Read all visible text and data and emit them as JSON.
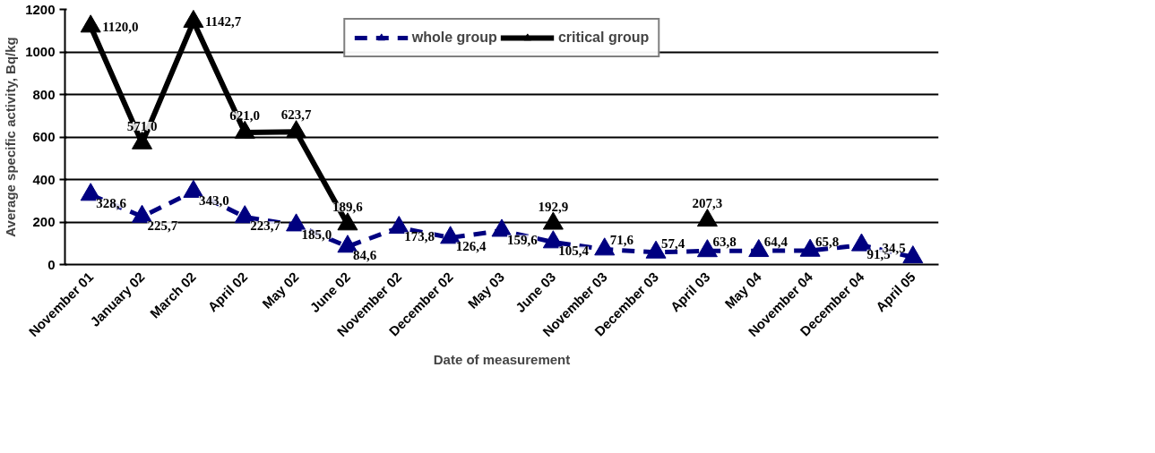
{
  "chart_data": {
    "type": "line",
    "xlabel": "Date of measurement",
    "ylabel": "Average specific activity, Bq/kg",
    "categories": [
      "November 01",
      "January 02",
      "March 02",
      "April 02",
      "May 02",
      "June 02",
      "November 02",
      "December 02",
      "May 03",
      "June 03",
      "November 03",
      "December 03",
      "April 03",
      "May 04",
      "November 04",
      "December 04",
      "April 05"
    ],
    "series": [
      {
        "name": "whole group",
        "color": "#000080",
        "line_style": "dashed",
        "values": [
          328.6,
          225.7,
          343.0,
          223.7,
          185.0,
          84.6,
          173.8,
          126.4,
          159.6,
          105.4,
          71.6,
          57.4,
          63.8,
          64.4,
          65.8,
          91.5,
          34.5
        ],
        "value_labels": [
          "328,6",
          "225,7",
          "343,0",
          "223,7",
          "185,0",
          "84,6",
          "173,8",
          "126,4",
          "159,6",
          "105,4",
          "71,6",
          "57,4",
          "63,8",
          "64,4",
          "65,8",
          "91,5",
          "34,5"
        ]
      },
      {
        "name": "critical group",
        "color": "#000000",
        "line_style": "solid",
        "values": [
          1120.0,
          571.0,
          1142.7,
          621.0,
          623.7,
          189.6,
          null,
          null,
          null,
          192.9,
          null,
          null,
          207.3,
          null,
          null,
          null,
          null
        ],
        "value_labels": [
          "1120,0",
          "571,0",
          "1142,7",
          "621,0",
          "623,7",
          "189,6",
          null,
          null,
          null,
          "192,9",
          null,
          null,
          "207,3",
          null,
          null,
          null,
          null
        ]
      }
    ],
    "ylim": [
      0,
      1200
    ],
    "yticks": [
      0,
      200,
      400,
      600,
      800,
      1000,
      1200
    ],
    "grid": "y",
    "legend": "top",
    "marker": "triangle"
  }
}
